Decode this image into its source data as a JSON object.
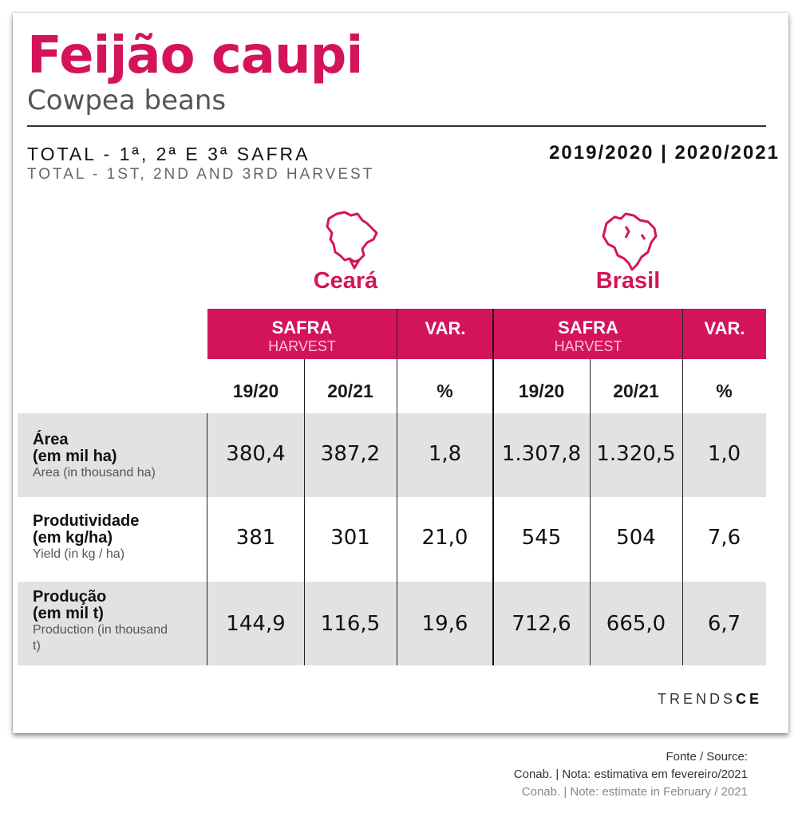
{
  "header": {
    "title": "Feijão caupi",
    "subtitle": "Cowpea beans"
  },
  "section": {
    "label_pt": "TOTAL - 1ª, 2ª E 3ª SAFRA",
    "label_en": "TOTAL - 1ST, 2ND AND 3RD HARVEST",
    "years": "2019/2020 | 2020/2021"
  },
  "regions": [
    {
      "name": "Ceará",
      "icon": "ceara-map-icon"
    },
    {
      "name": "Brasil",
      "icon": "brasil-map-icon"
    }
  ],
  "table": {
    "header": {
      "safra": "SAFRA",
      "harvest": "HARVEST",
      "var": "VAR."
    },
    "subheader": [
      "19/20",
      "20/21",
      "%",
      "19/20",
      "20/21",
      "%"
    ],
    "rows": [
      {
        "label_pt": "Área (em mil ha)",
        "label_pt_1": "Área",
        "label_pt_2": "(em mil ha)",
        "label_en": "Area (in thousand ha)",
        "values": [
          "380,4",
          "387,2",
          "1,8",
          "1.307,8",
          "1.320,5",
          "1,0"
        ]
      },
      {
        "label_pt_1": "Produtividade",
        "label_pt_2": "(em kg/ha)",
        "label_en": "Yield (in kg / ha)",
        "values": [
          "381",
          "301",
          "21,0",
          "545",
          "504",
          "7,6"
        ]
      },
      {
        "label_pt_1": "Produção",
        "label_pt_2": "(em mil t)",
        "label_en": "Production (in thousand t)",
        "values": [
          "144,9",
          "116,5",
          "19,6",
          "712,6",
          "665,0",
          "6,7"
        ]
      }
    ]
  },
  "logo": {
    "part1": "TRENDS",
    "part2": "CE"
  },
  "source": {
    "line1": "Fonte / Source:",
    "line2": "Conab. | Nota: estimativa em fevereiro/2021",
    "line3": "Conab. | Note: estimate in February / 2021"
  },
  "colors": {
    "accent": "#d4145a",
    "row_bg": "#e2e2e2"
  }
}
